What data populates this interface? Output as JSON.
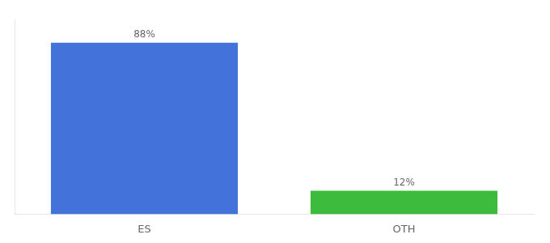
{
  "chart_data": {
    "type": "bar",
    "categories": [
      "ES",
      "OTH"
    ],
    "values": [
      88,
      12
    ],
    "value_labels": [
      "88%",
      "12%"
    ],
    "colors": [
      "#4472db",
      "#3dbb3d"
    ],
    "ylim": [
      0,
      100
    ],
    "grid": false,
    "data_labels": true,
    "tick_labels": "x"
  }
}
